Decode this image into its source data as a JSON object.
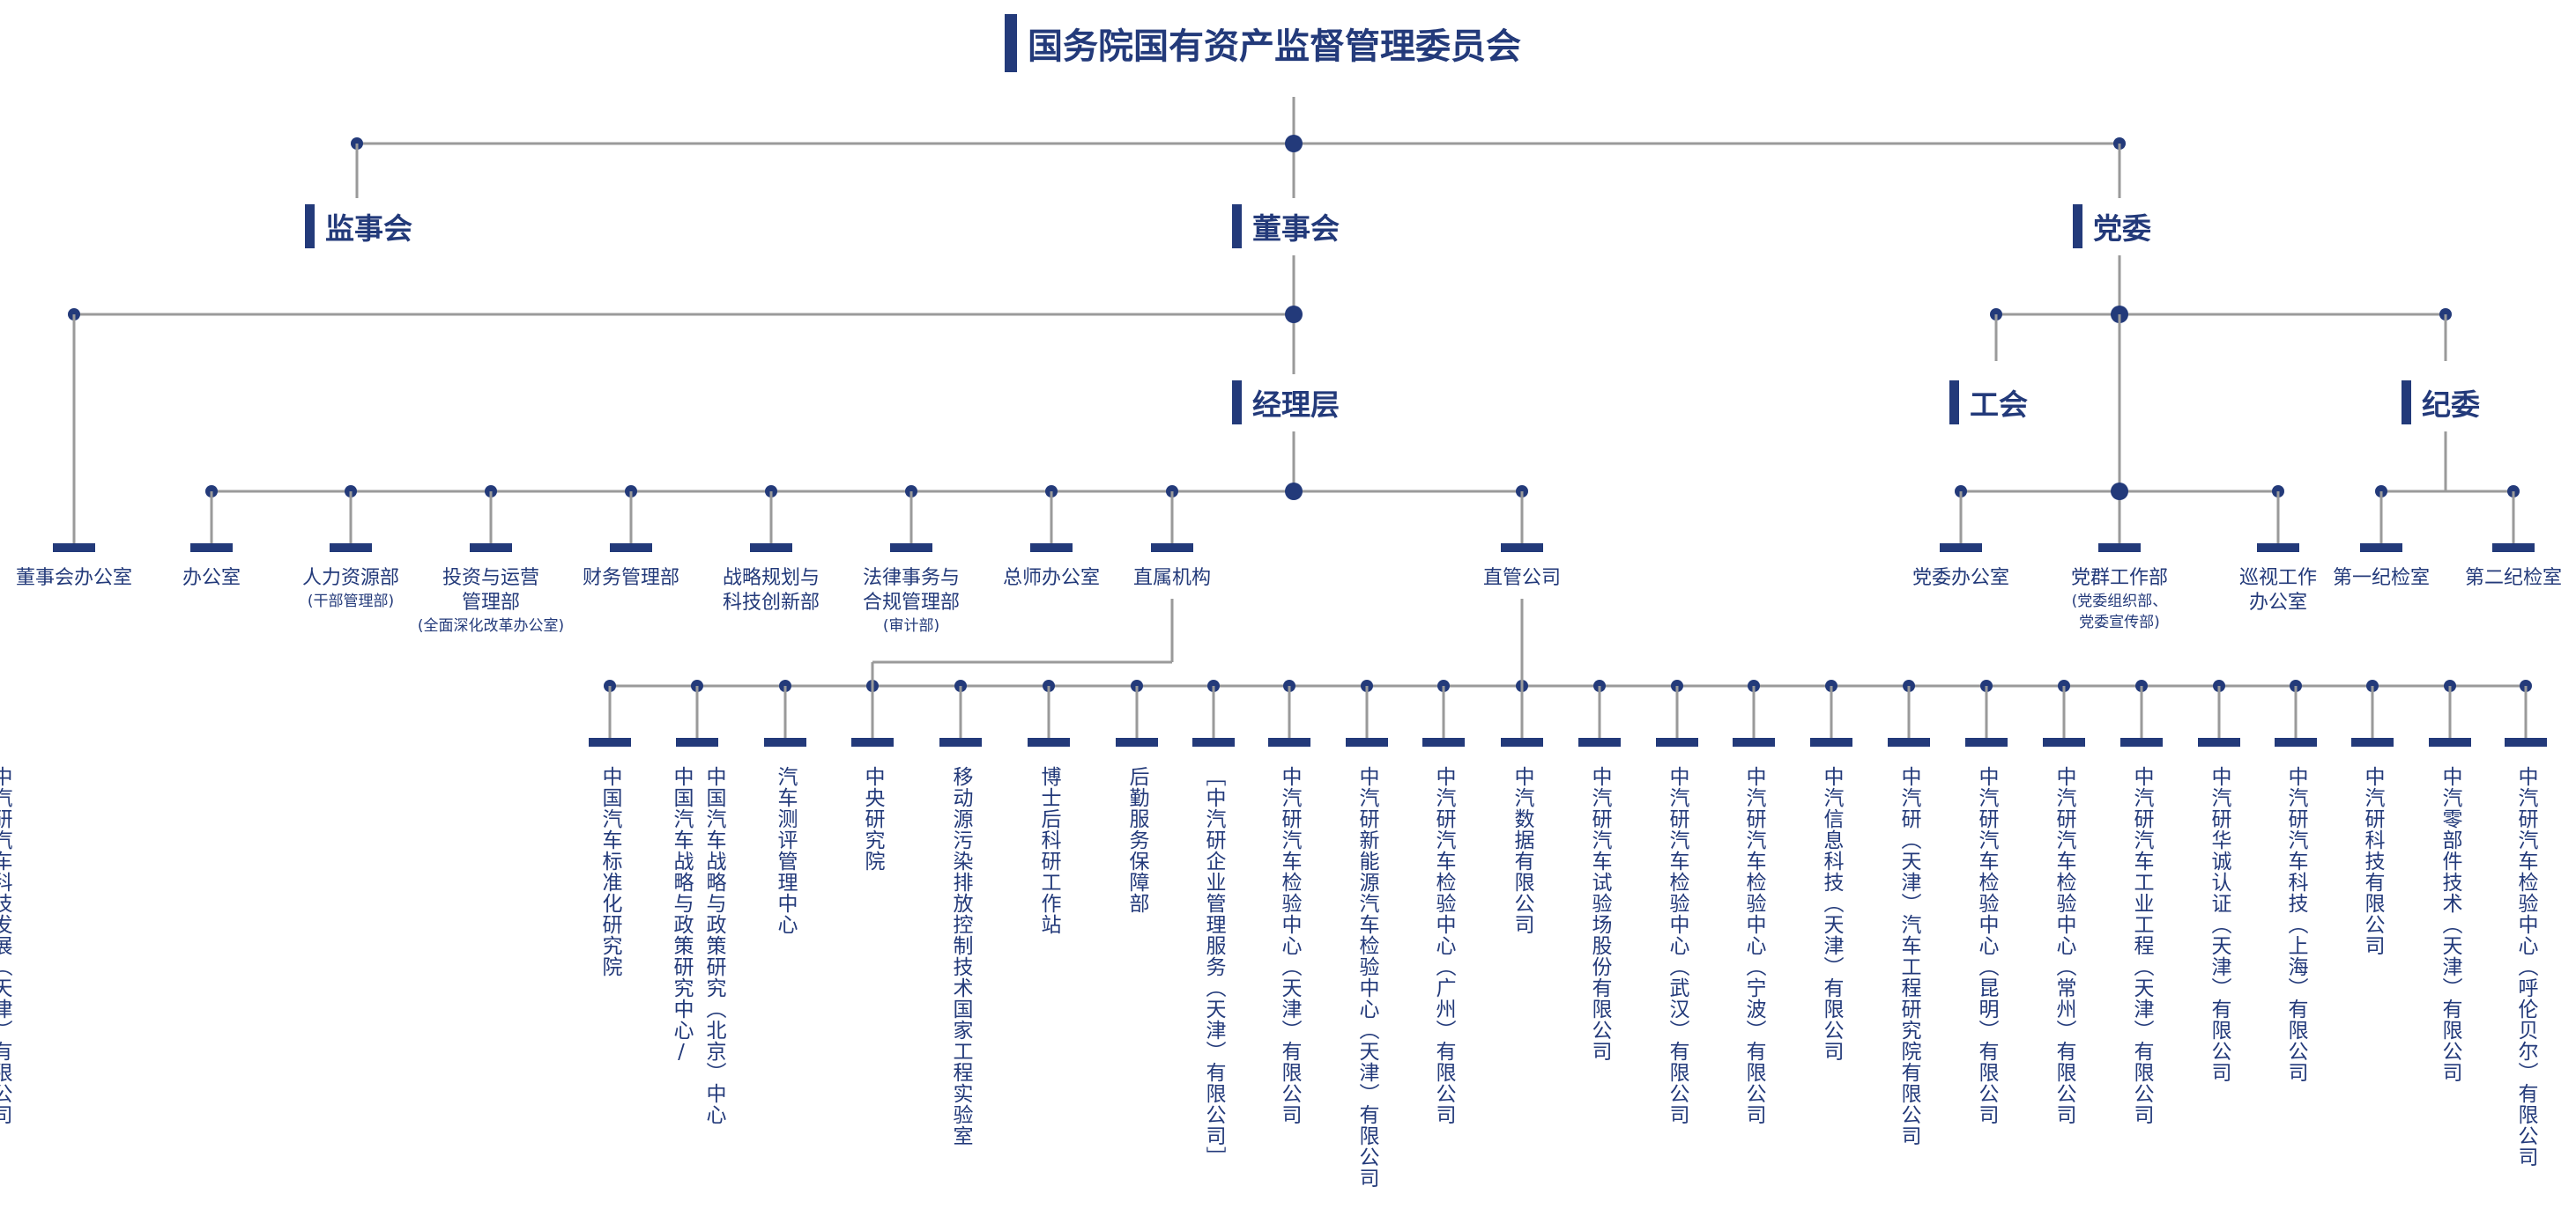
{
  "title": "国务院国有资产监督管理委员会",
  "bodies": {
    "supervisory": "监事会",
    "board": "董事会",
    "party": "党委",
    "management": "经理层",
    "union": "工会",
    "discipline": "纪委"
  },
  "departments": [
    {
      "name": "董事会办公室"
    },
    {
      "name": "办公室"
    },
    {
      "name": "人力资源部",
      "note": "(干部管理部)"
    },
    {
      "name": "投资与运营\n管理部",
      "note": "(全面深化改革办公室)"
    },
    {
      "name": "财务管理部"
    },
    {
      "name": "战略规划与\n科技创新部"
    },
    {
      "name": "法律事务与\n合规管理部",
      "note": "(审计部)"
    },
    {
      "name": "总师办公室"
    },
    {
      "name": "直属机构"
    },
    {
      "name": "直管公司"
    }
  ],
  "party_departments": [
    {
      "name": "党委办公室"
    },
    {
      "name": "党群工作部",
      "note": "(党委组织部、\n党委宣传部)"
    },
    {
      "name": "巡视工作\n办公室"
    }
  ],
  "discipline_departments": [
    {
      "name": "第一纪检室"
    },
    {
      "name": "第二纪检室"
    }
  ],
  "institutions": [
    "中国汽车标准化研究院",
    "中国汽车战略与政策研究（北京）中心\n中国汽车战略与政策研究中心/",
    "汽车测评管理中心",
    "中央研究院",
    "移动源污染排放控制技术国家工程实验室",
    "博士后科研工作站",
    "后勤服务保障部"
  ],
  "companies": [
    "［中汽研企业管理服务（天津）有限公司］",
    "中汽研汽车检验中心（天津）有限公司",
    "中汽研新能源汽车检验中心（天津）有限公司",
    "中汽研汽车检验中心（广州）有限公司",
    "中汽数据有限公司",
    "中汽研汽车试验场股份有限公司",
    "中汽研汽车检验中心（武汉）有限公司",
    "中汽研汽车检验中心（宁波）有限公司",
    "中汽信息科技（天津）有限公司",
    "中汽研（天津）汽车工程研究院有限公司",
    "中汽研汽车检验中心（昆明）有限公司",
    "中汽研汽车检验中心（常州）有限公司",
    "中汽研汽车工业工程（天津）有限公司",
    "中汽研华诚认证（天津）有限公司",
    "中汽研汽车科技（上海）有限公司",
    "中汽研科技有限公司",
    "中汽零部件技术（天津）有限公司",
    "中汽研汽车检验中心（呼伦贝尔）有限公司",
    "中汽研汽车科技发展（天津）有限公司"
  ],
  "colors": {
    "navy": "#233a7a",
    "line": "#9a9a9a"
  }
}
